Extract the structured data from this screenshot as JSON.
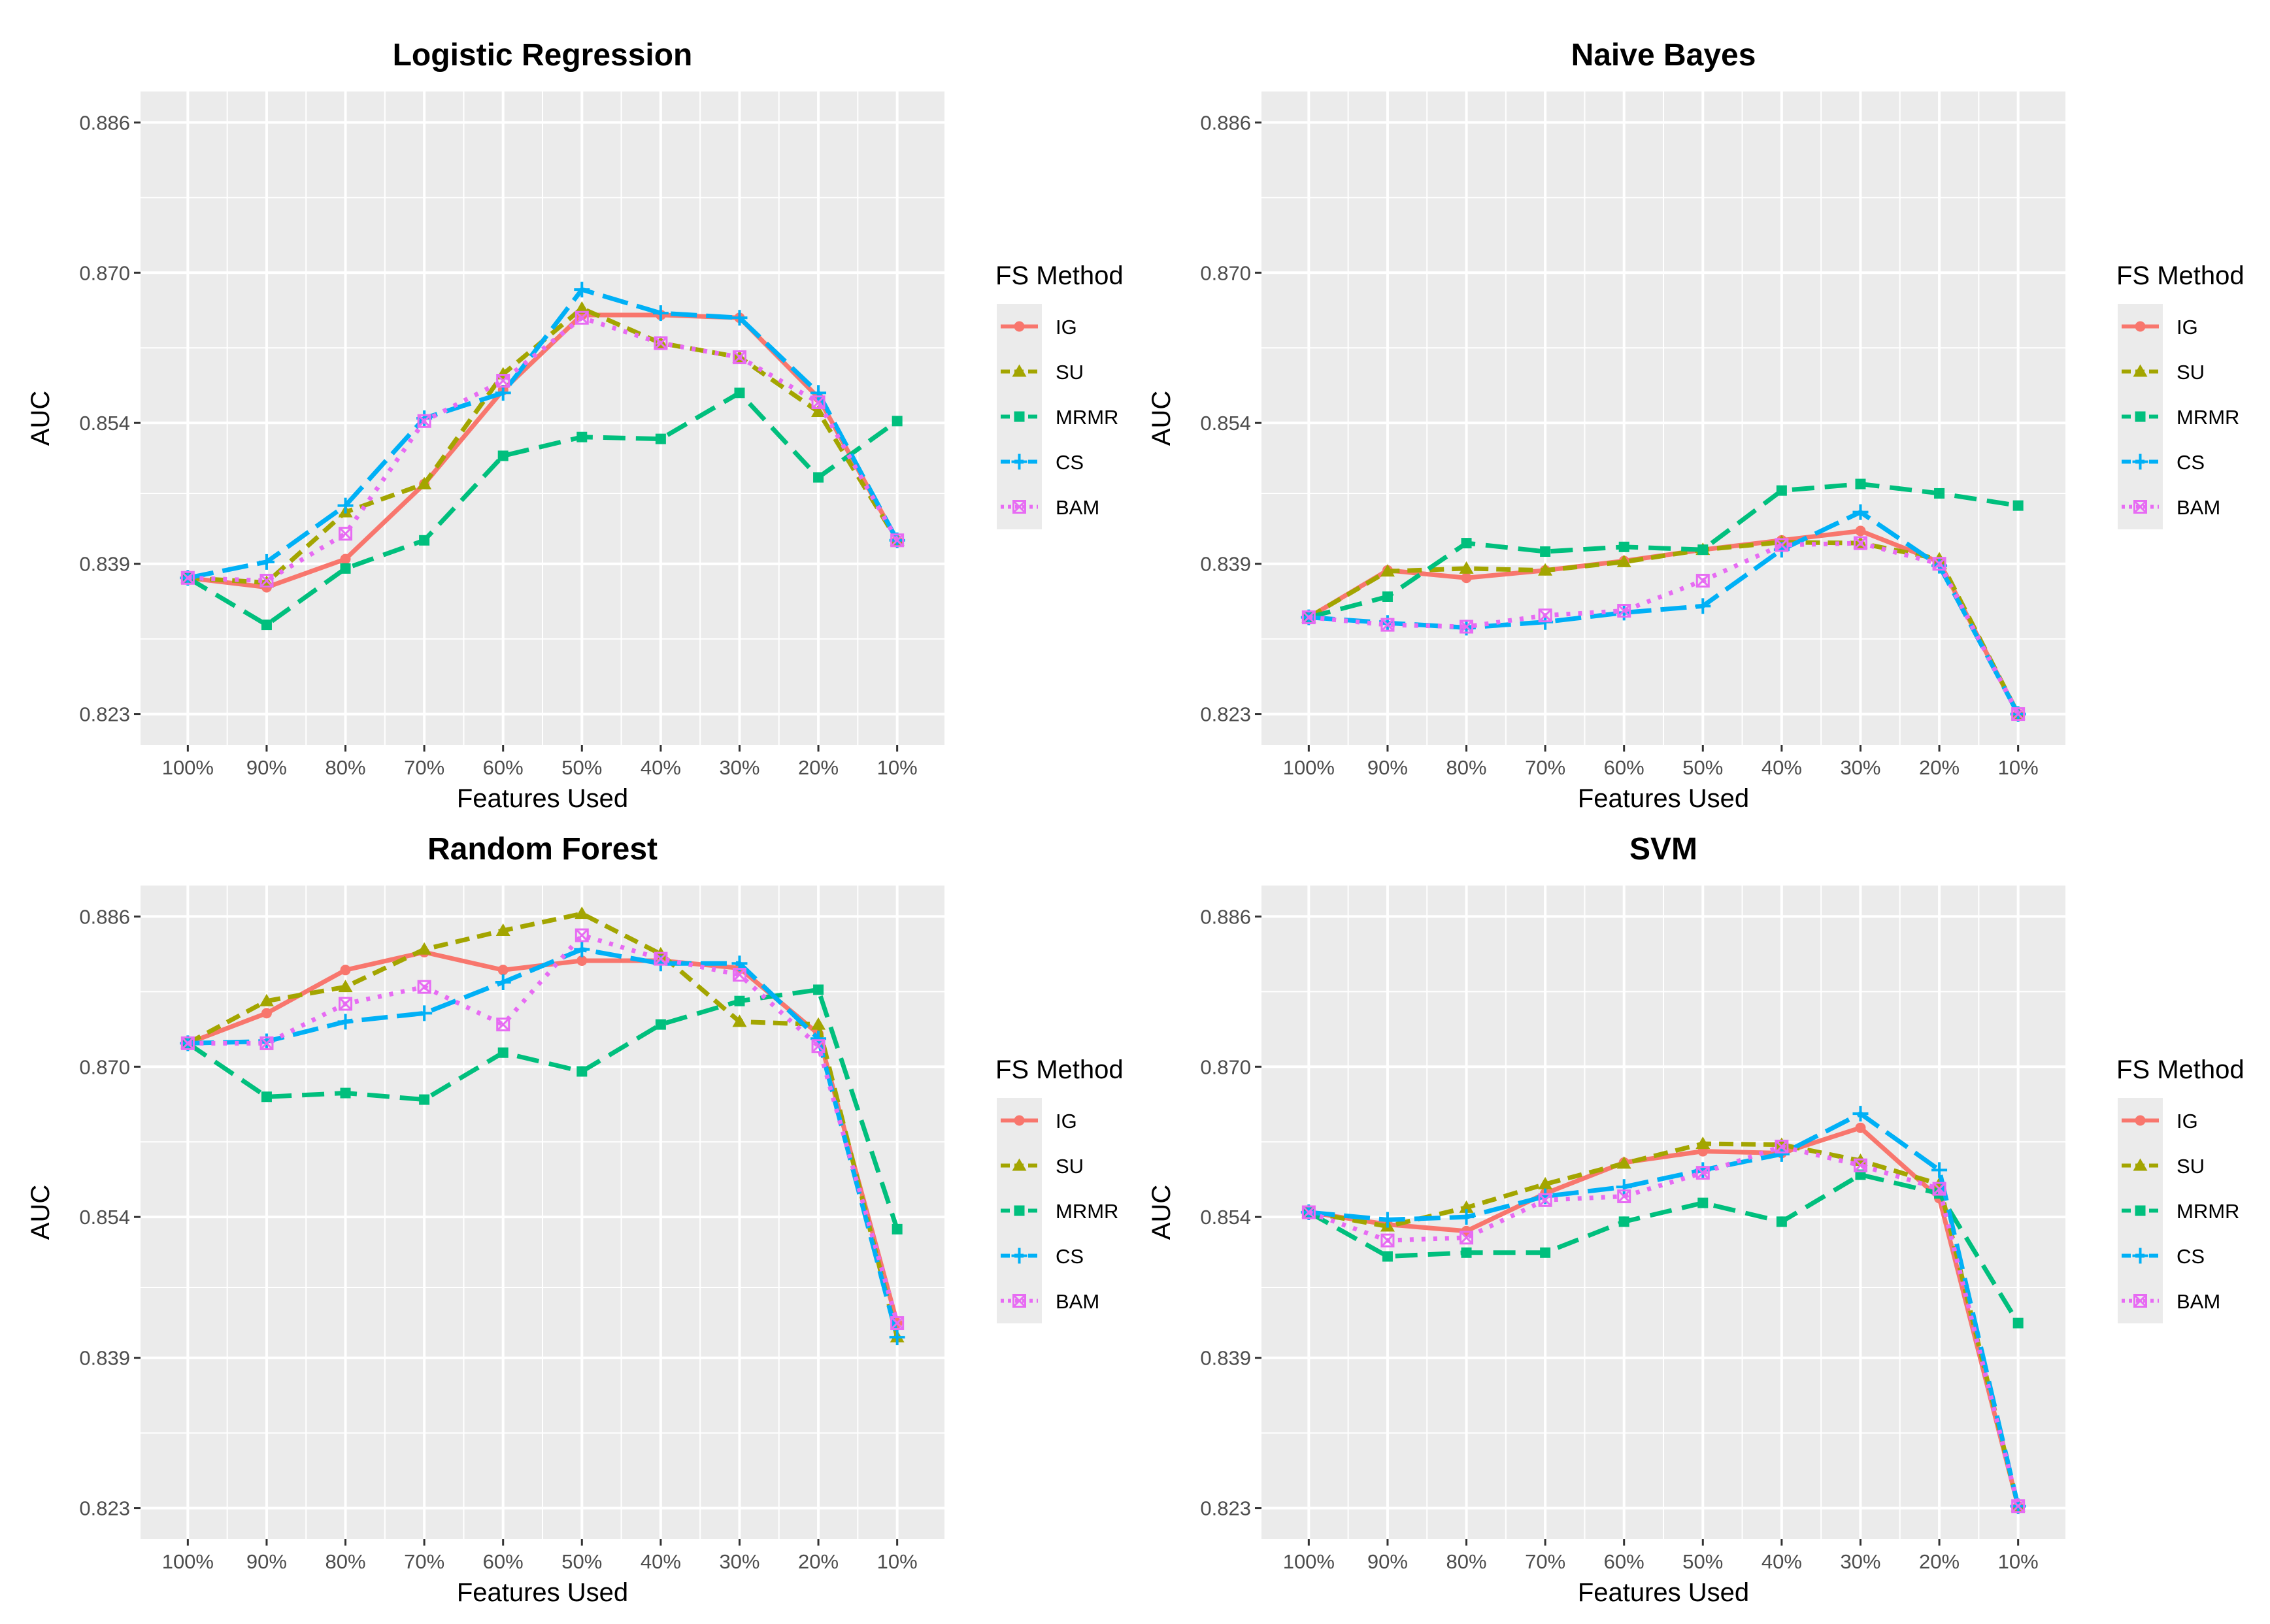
{
  "chart_data": [
    {
      "type": "line",
      "title": "Logistic Regression",
      "xlabel": "Features Used",
      "ylabel": "AUC",
      "categories": [
        "100%",
        "90%",
        "80%",
        "70%",
        "60%",
        "50%",
        "40%",
        "30%",
        "20%",
        "10%"
      ],
      "yticks": [
        "0.823",
        "0.839",
        "0.854",
        "0.870",
        "0.886"
      ],
      "ylim": [
        0.8197,
        0.8893
      ],
      "legend_title": "FS Method",
      "series": [
        {
          "name": "IG",
          "values": [
            0.8375,
            0.8365,
            0.8395,
            0.8475,
            0.8575,
            0.8655,
            0.8655,
            0.8652,
            0.8567,
            0.8415
          ]
        },
        {
          "name": "SU",
          "values": [
            0.8375,
            0.837,
            0.8445,
            0.8475,
            0.8592,
            0.8662,
            0.8625,
            0.861,
            0.8552,
            0.8415
          ]
        },
        {
          "name": "MRMR",
          "values": [
            0.8375,
            0.8325,
            0.8385,
            0.8415,
            0.8505,
            0.8525,
            0.8523,
            0.8572,
            0.8482,
            0.8542
          ]
        },
        {
          "name": "CS",
          "values": [
            0.8375,
            0.8392,
            0.8452,
            0.8545,
            0.8572,
            0.8682,
            0.8657,
            0.8652,
            0.8572,
            0.8415
          ]
        },
        {
          "name": "BAM",
          "values": [
            0.8375,
            0.8372,
            0.8422,
            0.8542,
            0.8585,
            0.8652,
            0.8625,
            0.861,
            0.8562,
            0.8415
          ]
        }
      ]
    },
    {
      "type": "line",
      "title": "Naive Bayes",
      "xlabel": "Features Used",
      "ylabel": "AUC",
      "categories": [
        "100%",
        "90%",
        "80%",
        "70%",
        "60%",
        "50%",
        "40%",
        "30%",
        "20%",
        "10%"
      ],
      "yticks": [
        "0.823",
        "0.839",
        "0.854",
        "0.870",
        "0.886"
      ],
      "ylim": [
        0.8197,
        0.8893
      ],
      "legend_title": "FS Method",
      "series": [
        {
          "name": "IG",
          "values": [
            0.8333,
            0.8383,
            0.8375,
            0.8383,
            0.8393,
            0.8405,
            0.8415,
            0.8425,
            0.8392,
            0.823
          ]
        },
        {
          "name": "SU",
          "values": [
            0.8333,
            0.8382,
            0.8385,
            0.8383,
            0.8392,
            0.8405,
            0.8413,
            0.8412,
            0.8395,
            0.823
          ]
        },
        {
          "name": "MRMR",
          "values": [
            0.8333,
            0.8355,
            0.8412,
            0.8403,
            0.8408,
            0.8405,
            0.8468,
            0.8475,
            0.8465,
            0.8452
          ]
        },
        {
          "name": "CS",
          "values": [
            0.8333,
            0.8327,
            0.8322,
            0.8328,
            0.8338,
            0.8345,
            0.8405,
            0.8445,
            0.8388,
            0.823
          ]
        },
        {
          "name": "BAM",
          "values": [
            0.8333,
            0.8325,
            0.8323,
            0.8335,
            0.834,
            0.8372,
            0.841,
            0.8412,
            0.839,
            0.823
          ]
        }
      ]
    },
    {
      "type": "line",
      "title": "Random Forest",
      "xlabel": "Features Used",
      "ylabel": "AUC",
      "categories": [
        "100%",
        "90%",
        "80%",
        "70%",
        "60%",
        "50%",
        "40%",
        "30%",
        "20%",
        "10%"
      ],
      "yticks": [
        "0.823",
        "0.839",
        "0.854",
        "0.870",
        "0.886"
      ],
      "ylim": [
        0.8197,
        0.8893
      ],
      "legend_title": "FS Method",
      "series": [
        {
          "name": "IG",
          "values": [
            0.8725,
            0.8757,
            0.8803,
            0.8822,
            0.8803,
            0.8813,
            0.8813,
            0.8805,
            0.8735,
            0.8427
          ]
        },
        {
          "name": "SU",
          "values": [
            0.8725,
            0.877,
            0.8785,
            0.8825,
            0.8845,
            0.8863,
            0.882,
            0.8748,
            0.8745,
            0.8412
          ]
        },
        {
          "name": "MRMR",
          "values": [
            0.8725,
            0.8668,
            0.8672,
            0.8665,
            0.8715,
            0.8695,
            0.8745,
            0.877,
            0.8782,
            0.8527
          ]
        },
        {
          "name": "CS",
          "values": [
            0.8725,
            0.8727,
            0.8748,
            0.8757,
            0.879,
            0.8825,
            0.881,
            0.881,
            0.873,
            0.8412
          ]
        },
        {
          "name": "BAM",
          "values": [
            0.8725,
            0.8725,
            0.8767,
            0.8785,
            0.8745,
            0.884,
            0.8815,
            0.8798,
            0.8722,
            0.8427
          ]
        }
      ]
    },
    {
      "type": "line",
      "title": "SVM",
      "xlabel": "Features Used",
      "ylabel": "AUC",
      "categories": [
        "100%",
        "90%",
        "80%",
        "70%",
        "60%",
        "50%",
        "40%",
        "30%",
        "20%",
        "10%"
      ],
      "yticks": [
        "0.823",
        "0.839",
        "0.854",
        "0.870",
        "0.886"
      ],
      "ylim": [
        0.8197,
        0.8893
      ],
      "legend_title": "FS Method",
      "series": [
        {
          "name": "IG",
          "values": [
            0.8545,
            0.8532,
            0.8525,
            0.8565,
            0.8598,
            0.861,
            0.8608,
            0.8635,
            0.856,
            0.8232
          ]
        },
        {
          "name": "SU",
          "values": [
            0.8545,
            0.853,
            0.855,
            0.8575,
            0.8597,
            0.8618,
            0.8617,
            0.86,
            0.8575,
            0.8232
          ]
        },
        {
          "name": "MRMR",
          "values": [
            0.8545,
            0.8498,
            0.8502,
            0.8502,
            0.8535,
            0.8555,
            0.8535,
            0.8585,
            0.8565,
            0.8427
          ]
        },
        {
          "name": "CS",
          "values": [
            0.8545,
            0.8537,
            0.854,
            0.8562,
            0.8572,
            0.859,
            0.8607,
            0.865,
            0.859,
            0.8232
          ]
        },
        {
          "name": "BAM",
          "values": [
            0.8545,
            0.8515,
            0.8518,
            0.8558,
            0.8562,
            0.8587,
            0.8615,
            0.8595,
            0.857,
            0.8232
          ]
        }
      ]
    }
  ],
  "colors": {
    "IG": "#F8766D",
    "SU": "#A3A500",
    "MRMR": "#00BF7D",
    "CS": "#00B0F6",
    "BAM": "#E76BF3",
    "panel_bg": "#EBEBEB",
    "grid": "#FFFFFF"
  }
}
